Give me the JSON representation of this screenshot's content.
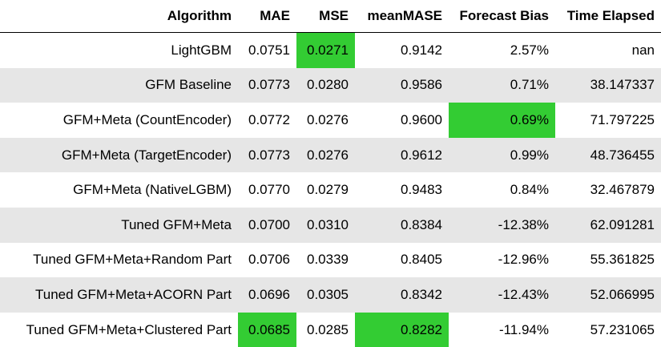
{
  "table": {
    "columns": [
      "Algorithm",
      "MAE",
      "MSE",
      "meanMASE",
      "Forecast Bias",
      "Time Elapsed"
    ],
    "highlight_color": "#33cc33",
    "stripe_color": "#e6e6e6",
    "rows": [
      {
        "algorithm": "LightGBM",
        "mae": "0.0751",
        "mse": "0.0271",
        "meanmase": "0.9142",
        "forecast_bias": "2.57%",
        "time_elapsed": "nan",
        "highlight": [
          "mse"
        ]
      },
      {
        "algorithm": "GFM Baseline",
        "mae": "0.0773",
        "mse": "0.0280",
        "meanmase": "0.9586",
        "forecast_bias": "0.71%",
        "time_elapsed": "38.147337",
        "highlight": []
      },
      {
        "algorithm": "GFM+Meta (CountEncoder)",
        "mae": "0.0772",
        "mse": "0.0276",
        "meanmase": "0.9600",
        "forecast_bias": "0.69%",
        "time_elapsed": "71.797225",
        "highlight": [
          "forecast_bias"
        ]
      },
      {
        "algorithm": "GFM+Meta (TargetEncoder)",
        "mae": "0.0773",
        "mse": "0.0276",
        "meanmase": "0.9612",
        "forecast_bias": "0.99%",
        "time_elapsed": "48.736455",
        "highlight": []
      },
      {
        "algorithm": "GFM+Meta (NativeLGBM)",
        "mae": "0.0770",
        "mse": "0.0279",
        "meanmase": "0.9483",
        "forecast_bias": "0.84%",
        "time_elapsed": "32.467879",
        "highlight": []
      },
      {
        "algorithm": "Tuned GFM+Meta",
        "mae": "0.0700",
        "mse": "0.0310",
        "meanmase": "0.8384",
        "forecast_bias": "-12.38%",
        "time_elapsed": "62.091281",
        "highlight": []
      },
      {
        "algorithm": "Tuned GFM+Meta+Random Part",
        "mae": "0.0706",
        "mse": "0.0339",
        "meanmase": "0.8405",
        "forecast_bias": "-12.96%",
        "time_elapsed": "55.361825",
        "highlight": []
      },
      {
        "algorithm": "Tuned GFM+Meta+ACORN Part",
        "mae": "0.0696",
        "mse": "0.0305",
        "meanmase": "0.8342",
        "forecast_bias": "-12.43%",
        "time_elapsed": "52.066995",
        "highlight": []
      },
      {
        "algorithm": "Tuned GFM+Meta+Clustered Part",
        "mae": "0.0685",
        "mse": "0.0285",
        "meanmase": "0.8282",
        "forecast_bias": "-11.94%",
        "time_elapsed": "57.231065",
        "highlight": [
          "mae",
          "meanmase"
        ]
      }
    ]
  }
}
